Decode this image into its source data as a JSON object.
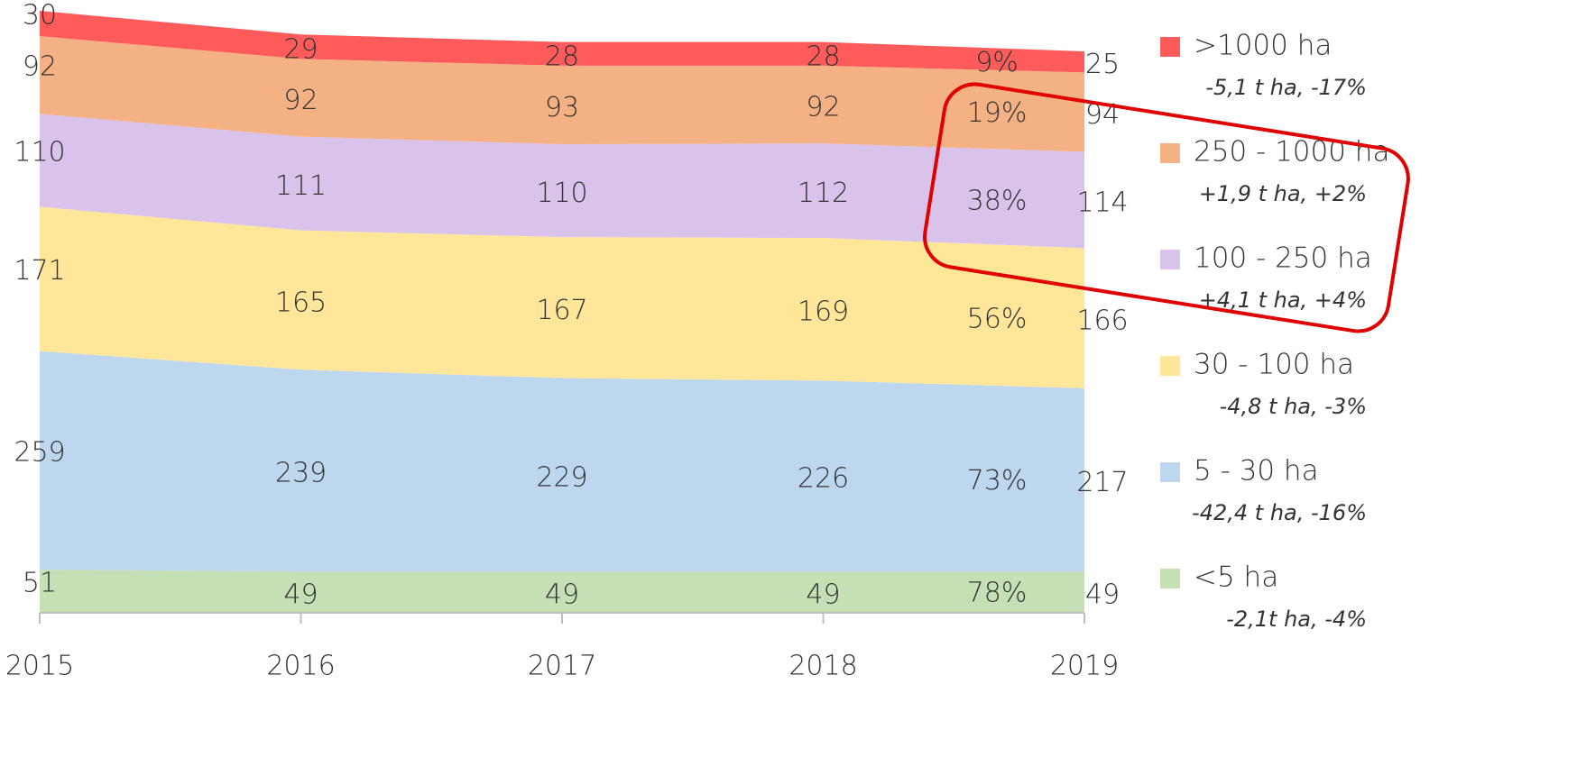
{
  "chart_data": {
    "type": "stacked_area",
    "categories": [
      "2015",
      "2016",
      "2017",
      "2018",
      "2019"
    ],
    "series": [
      {
        "name": "<5 ha",
        "note": "-2,1t ha, -4%",
        "share_label": "78%",
        "color": "#c5e0b4",
        "values": [
          51,
          49,
          49,
          49,
          49
        ]
      },
      {
        "name": "5 - 30 ha",
        "note": "-42,4 t ha, -16%",
        "share_label": "73%",
        "color": "#bdd7ee",
        "values": [
          259,
          239,
          229,
          226,
          217
        ]
      },
      {
        "name": "30 - 100 ha",
        "note": "-4,8 t ha, -3%",
        "share_label": "56%",
        "color": "#ffe699",
        "values": [
          171,
          165,
          167,
          169,
          166
        ]
      },
      {
        "name": "100 - 250 ha",
        "note": "+4,1 t ha, +4%",
        "share_label": "38%",
        "color": "#d9c3eb",
        "values": [
          110,
          111,
          110,
          112,
          114
        ]
      },
      {
        "name": "250 - 1000 ha",
        "note": "+1,9 t ha, +2%",
        "share_label": "19%",
        "color": "#f4b183",
        "values": [
          92,
          92,
          93,
          92,
          94
        ]
      },
      {
        "name": ">1000 ha",
        "note": "-5,1 t ha, -17%",
        "share_label": "9%",
        "color": "#ff5b5b",
        "values": [
          30,
          29,
          28,
          28,
          25
        ]
      }
    ]
  }
}
